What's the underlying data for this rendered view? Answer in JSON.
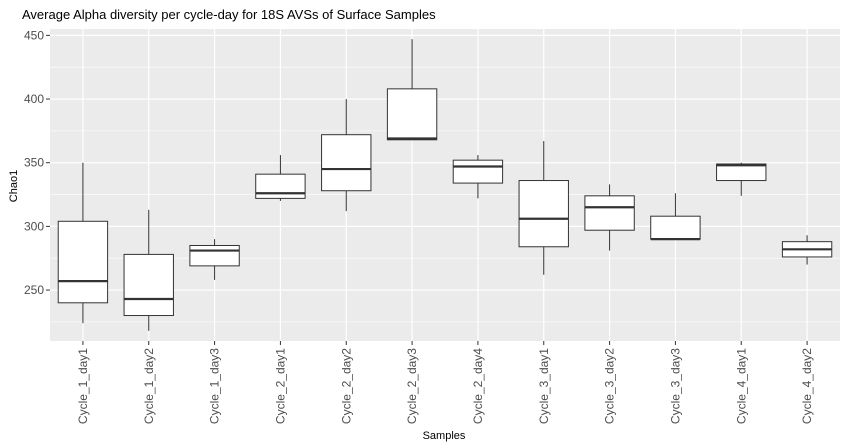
{
  "chart_data": {
    "type": "boxplot",
    "title": "Average Alpha diversity per cycle-day for 18S AVSs of Surface Samples",
    "xlabel": "Samples",
    "ylabel": "Chao1",
    "ylim": [
      210,
      455
    ],
    "yticks": [
      250,
      300,
      350,
      400,
      450
    ],
    "grid": true,
    "legend": "none",
    "colors": {
      "panel": "#ebebeb",
      "grid": "#ffffff",
      "box_fill": "#ffffff",
      "box_line": "#333333",
      "tick_text": "#4d4d4d"
    },
    "categories": [
      "Cycle_1_day1",
      "Cycle_1_day2",
      "Cycle_1_day3",
      "Cycle_2_day1",
      "Cycle_2_day2",
      "Cycle_2_day3",
      "Cycle_2_day4",
      "Cycle_3_day1",
      "Cycle_3_day2",
      "Cycle_3_day3",
      "Cycle_4_day1",
      "Cycle_4_day2"
    ],
    "boxes": [
      {
        "min": 224,
        "q1": 240,
        "median": 257,
        "q3": 304,
        "max": 350
      },
      {
        "min": 218,
        "q1": 230,
        "median": 243,
        "q3": 278,
        "max": 313
      },
      {
        "min": 258,
        "q1": 269,
        "median": 281,
        "q3": 285,
        "max": 290
      },
      {
        "min": 320,
        "q1": 322,
        "median": 326,
        "q3": 341,
        "max": 356
      },
      {
        "min": 312,
        "q1": 328,
        "median": 345,
        "q3": 372,
        "max": 400
      },
      {
        "min": 368,
        "q1": 368,
        "median": 369,
        "q3": 408,
        "max": 447
      },
      {
        "min": 322,
        "q1": 334,
        "median": 347,
        "q3": 352,
        "max": 356
      },
      {
        "min": 262,
        "q1": 284,
        "median": 306,
        "q3": 336,
        "max": 367
      },
      {
        "min": 281,
        "q1": 297,
        "median": 315,
        "q3": 324,
        "max": 333
      },
      {
        "min": 290,
        "q1": 290,
        "median": 290,
        "q3": 308,
        "max": 326
      },
      {
        "min": 324,
        "q1": 336,
        "median": 348,
        "q3": 349,
        "max": 350
      },
      {
        "min": 270,
        "q1": 276,
        "median": 282,
        "q3": 288,
        "max": 293
      }
    ]
  }
}
